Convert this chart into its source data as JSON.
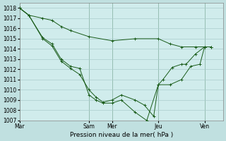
{
  "background_color": "#c0e0e0",
  "plot_bg_color": "#d0ecec",
  "grid_color": "#aacccc",
  "line_color": "#1a5c1a",
  "title": "Pression niveau de la mer( hPa )",
  "ylim": [
    1007,
    1018.5
  ],
  "yticks": [
    1007,
    1008,
    1009,
    1010,
    1011,
    1012,
    1013,
    1014,
    1015,
    1016,
    1017,
    1018
  ],
  "xtick_labels": [
    "Mar",
    "Sam",
    "Mer",
    "Jeu",
    "Ven"
  ],
  "xtick_positions": [
    0,
    30,
    40,
    60,
    80
  ],
  "xlim": [
    0,
    88
  ],
  "vlines": [
    0,
    30,
    40,
    60,
    80
  ],
  "line1_x": [
    0,
    4,
    10,
    14,
    18,
    22,
    26,
    30,
    33,
    36,
    40,
    44,
    50,
    55,
    60,
    62,
    66,
    70,
    72,
    76,
    80,
    83
  ],
  "line1_y": [
    1018.0,
    1017.3,
    1015.1,
    1014.5,
    1013.0,
    1012.3,
    1012.1,
    1009.5,
    1009.0,
    1008.7,
    1008.7,
    1009.0,
    1007.8,
    1007.0,
    1010.5,
    1011.0,
    1012.2,
    1012.5,
    1012.5,
    1013.5,
    1014.2,
    1014.2
  ],
  "line2_x": [
    0,
    4,
    10,
    14,
    18,
    22,
    30,
    40,
    50,
    60,
    65,
    70,
    76,
    80,
    83
  ],
  "line2_y": [
    1018.0,
    1017.3,
    1017.0,
    1016.8,
    1016.2,
    1015.8,
    1015.2,
    1014.8,
    1015.0,
    1015.0,
    1014.5,
    1014.2,
    1014.2,
    1014.2,
    1014.2
  ],
  "line3_x": [
    0,
    4,
    10,
    14,
    18,
    22,
    26,
    30,
    33,
    36,
    40,
    44,
    50,
    54,
    58,
    60,
    65,
    70,
    74,
    78,
    80,
    83
  ],
  "line3_y": [
    1018.0,
    1017.3,
    1015.0,
    1014.3,
    1012.8,
    1012.1,
    1011.5,
    1010.0,
    1009.3,
    1008.8,
    1009.0,
    1009.5,
    1009.0,
    1008.5,
    1007.4,
    1010.5,
    1010.5,
    1011.0,
    1012.3,
    1012.5,
    1014.2,
    1014.2
  ]
}
